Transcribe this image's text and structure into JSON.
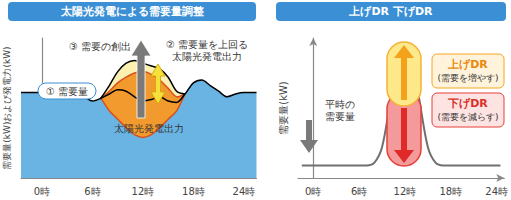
{
  "chart_data": [
    {
      "type": "area",
      "title": "太陽光発電による需要量調整",
      "y_label": "需要量(kW)および発電力(kW)",
      "x": [
        -2.5,
        0,
        1,
        2,
        3,
        4,
        5,
        6,
        7,
        8,
        9,
        10,
        11,
        12,
        13,
        14,
        15,
        16,
        17,
        18,
        19,
        20,
        21,
        22,
        23,
        24,
        25.5
      ],
      "xlim": [
        -2.5,
        25.5
      ],
      "xticks": [
        {
          "value": 0,
          "label": "0時"
        },
        {
          "value": 6,
          "label": "6時"
        },
        {
          "value": 12,
          "label": "12時"
        },
        {
          "value": 18,
          "label": "18時"
        },
        {
          "value": 24,
          "label": "24時"
        }
      ],
      "ylim": [
        0,
        100
      ],
      "tick_labels": "x",
      "grid": false,
      "series": [
        {
          "type": "area",
          "color": "#fbf0b0",
          "values": [
            null,
            null,
            null,
            null,
            null,
            null,
            null,
            null,
            57,
            66,
            76,
            82,
            84,
            82,
            80,
            78,
            72,
            62,
            60,
            null,
            null,
            null,
            null,
            null,
            null,
            null,
            null
          ]
        },
        {
          "type": "area",
          "color": "#6ab4e4",
          "values": [
            61,
            61,
            61,
            61,
            61,
            60,
            58,
            55,
            57,
            60,
            63,
            62,
            58,
            55,
            56,
            58,
            55,
            54,
            60,
            68,
            70,
            66,
            62,
            58,
            60,
            61,
            61
          ]
        },
        {
          "type": "band",
          "color": "#f39a2e",
          "lower": [
            null,
            null,
            null,
            null,
            null,
            null,
            null,
            null,
            57,
            48,
            42,
            36,
            31,
            29,
            31,
            36,
            42,
            48,
            60,
            null,
            null,
            null,
            null,
            null,
            null,
            null,
            null
          ],
          "upper": [
            null,
            null,
            null,
            null,
            null,
            null,
            null,
            null,
            57,
            62,
            68,
            72,
            75,
            76,
            74,
            70,
            64,
            58,
            60,
            null,
            null,
            null,
            null,
            null,
            null,
            null,
            null
          ]
        }
      ],
      "annotations": [
        {
          "text": "① 需要量"
        },
        {
          "text": "② 需要量を上回る\n太陽光発電出力"
        },
        {
          "text": "③ 需要の創出"
        },
        {
          "text": "太陽光発電出力"
        }
      ]
    },
    {
      "type": "line",
      "title": "上げDR 下げDR",
      "y_label": "需要量(kW)",
      "x": [
        -1.5,
        0,
        1,
        2,
        3,
        4,
        5,
        6,
        7,
        8,
        9,
        10,
        11,
        12,
        13,
        14,
        15,
        16,
        17,
        18,
        19,
        20,
        21,
        22,
        23,
        24,
        24.5
      ],
      "xlim": [
        -2,
        25
      ],
      "xticks": [
        {
          "value": 0,
          "label": "0時"
        },
        {
          "value": 6,
          "label": "6時"
        },
        {
          "value": 12,
          "label": "12時"
        },
        {
          "value": 18,
          "label": "18時"
        },
        {
          "value": 24,
          "label": "24時"
        }
      ],
      "ylim": [
        0,
        100
      ],
      "tick_labels": "x",
      "grid": false,
      "series": [
        {
          "type": "line",
          "color": "#707070",
          "values": [
            9,
            9,
            9,
            9,
            9,
            9,
            9,
            9,
            9,
            11,
            22,
            52,
            84,
            93,
            84,
            52,
            22,
            11,
            9,
            9,
            9,
            9,
            9,
            9,
            9,
            9,
            9
          ]
        }
      ],
      "annotations": [
        {
          "text": "上げDR",
          "sub": "(需要を増やす)"
        },
        {
          "text": "下げDR",
          "sub": "(需要を減らす)"
        },
        {
          "text": "平時の\n需要量"
        }
      ]
    }
  ]
}
